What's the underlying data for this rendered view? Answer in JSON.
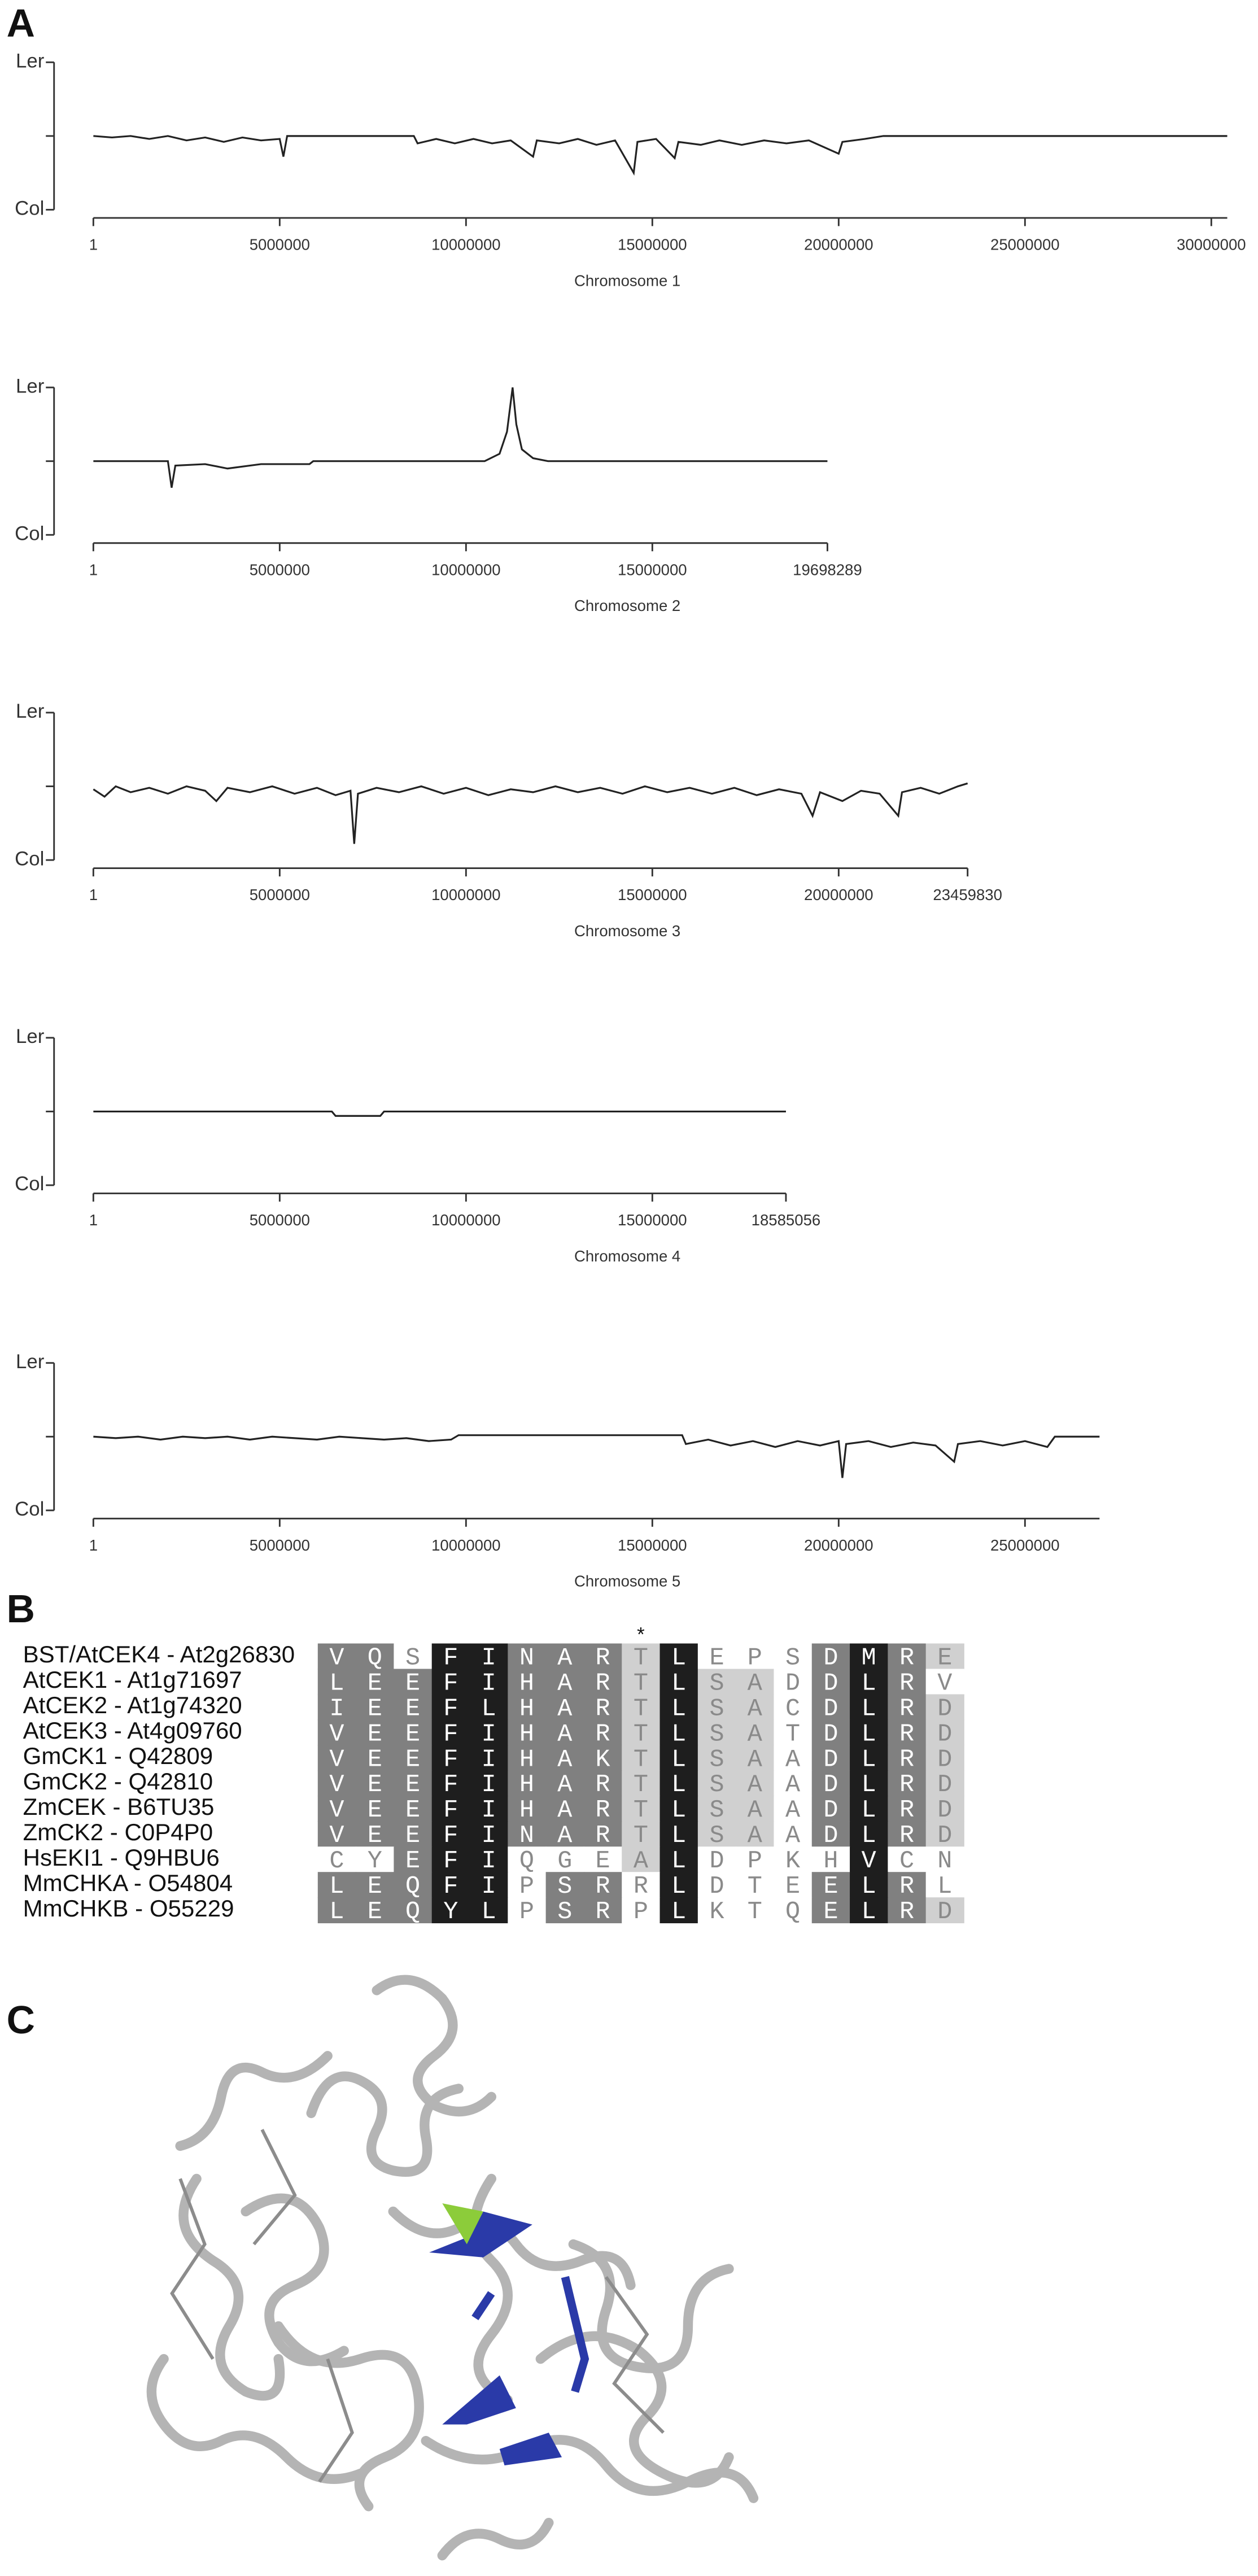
{
  "panel_labels": [
    "A",
    "B",
    "C"
  ],
  "chart_data": [
    {
      "type": "line",
      "xlabel": "Chromosome 1",
      "color": "#222222",
      "xlim": [
        1,
        30427671
      ],
      "xticks": [
        1,
        5000000,
        10000000,
        15000000,
        20000000,
        25000000,
        30000000
      ],
      "ylim": [
        0,
        1
      ],
      "yticks": [
        {
          "value": 1,
          "label": "Ler"
        },
        {
          "value": 0.5,
          "label": null
        },
        {
          "value": 0,
          "label": "Col"
        }
      ],
      "x": [
        1,
        500000,
        1000000,
        1500000,
        2000000,
        2500000,
        3000000,
        3500000,
        4000000,
        4500000,
        5000000,
        5100000,
        5200000,
        8600000,
        8700000,
        9200000,
        9700000,
        10200000,
        10700000,
        11200000,
        11800000,
        11900000,
        12500000,
        13000000,
        13500000,
        14000000,
        14500000,
        14600000,
        15100000,
        15600000,
        15700000,
        16300000,
        16800000,
        17400000,
        18000000,
        18600000,
        19200000,
        20000000,
        20100000,
        20700000,
        21200000,
        30427671
      ],
      "values": [
        0.5,
        0.49,
        0.5,
        0.48,
        0.5,
        0.47,
        0.49,
        0.46,
        0.49,
        0.47,
        0.48,
        0.36,
        0.5,
        0.5,
        0.45,
        0.48,
        0.45,
        0.48,
        0.45,
        0.47,
        0.36,
        0.47,
        0.45,
        0.48,
        0.44,
        0.47,
        0.25,
        0.46,
        0.48,
        0.35,
        0.46,
        0.44,
        0.47,
        0.44,
        0.47,
        0.45,
        0.47,
        0.38,
        0.46,
        0.48,
        0.5,
        0.5
      ]
    },
    {
      "type": "line",
      "xlabel": "Chromosome 2",
      "color": "#222222",
      "xlim": [
        1,
        19698289
      ],
      "xticks": [
        1,
        5000000,
        10000000,
        15000000,
        19698289
      ],
      "ylim": [
        0,
        1
      ],
      "yticks": [
        {
          "value": 1,
          "label": "Ler"
        },
        {
          "value": 0.5,
          "label": null
        },
        {
          "value": 0,
          "label": "Col"
        }
      ],
      "x": [
        1,
        2000000,
        2100000,
        2200000,
        3000000,
        3600000,
        4500000,
        5800000,
        5900000,
        10500000,
        10900000,
        11100000,
        11250000,
        11350000,
        11500000,
        11800000,
        12200000,
        19698289
      ],
      "values": [
        0.5,
        0.5,
        0.32,
        0.47,
        0.48,
        0.45,
        0.48,
        0.48,
        0.5,
        0.5,
        0.55,
        0.7,
        1.0,
        0.75,
        0.58,
        0.52,
        0.5,
        0.5
      ]
    },
    {
      "type": "line",
      "xlabel": "Chromosome 3",
      "color": "#222222",
      "xlim": [
        1,
        23459830
      ],
      "xticks": [
        1,
        5000000,
        10000000,
        15000000,
        20000000,
        23459830
      ],
      "ylim": [
        0,
        1
      ],
      "yticks": [
        {
          "value": 1,
          "label": "Ler"
        },
        {
          "value": 0.5,
          "label": null
        },
        {
          "value": 0,
          "label": "Col"
        }
      ],
      "x": [
        1,
        300000,
        600000,
        1000000,
        1500000,
        2000000,
        2500000,
        3000000,
        3300000,
        3600000,
        4200000,
        4800000,
        5400000,
        6000000,
        6500000,
        6900000,
        7000000,
        7100000,
        7600000,
        8200000,
        8800000,
        9400000,
        10000000,
        10600000,
        11200000,
        11800000,
        12400000,
        13000000,
        13600000,
        14200000,
        14800000,
        15400000,
        16000000,
        16600000,
        17200000,
        17800000,
        18400000,
        19000000,
        19300000,
        19500000,
        20100000,
        20600000,
        21100000,
        21600000,
        21700000,
        22200000,
        22700000,
        23200000,
        23459830
      ],
      "values": [
        0.48,
        0.43,
        0.5,
        0.46,
        0.49,
        0.45,
        0.5,
        0.47,
        0.4,
        0.49,
        0.46,
        0.5,
        0.45,
        0.49,
        0.44,
        0.47,
        0.11,
        0.45,
        0.49,
        0.46,
        0.5,
        0.45,
        0.49,
        0.44,
        0.48,
        0.46,
        0.5,
        0.46,
        0.49,
        0.45,
        0.5,
        0.46,
        0.49,
        0.45,
        0.49,
        0.44,
        0.48,
        0.45,
        0.3,
        0.46,
        0.4,
        0.47,
        0.45,
        0.3,
        0.46,
        0.49,
        0.45,
        0.5,
        0.52
      ]
    },
    {
      "type": "line",
      "xlabel": "Chromosome 4",
      "color": "#222222",
      "xlim": [
        1,
        18585056
      ],
      "xticks": [
        1,
        5000000,
        10000000,
        15000000,
        18585056
      ],
      "ylim": [
        0,
        1
      ],
      "yticks": [
        {
          "value": 1,
          "label": "Ler"
        },
        {
          "value": 0.5,
          "label": null
        },
        {
          "value": 0,
          "label": "Col"
        }
      ],
      "x": [
        1,
        6400000,
        6500000,
        7700000,
        7800000,
        18585056
      ],
      "values": [
        0.5,
        0.5,
        0.47,
        0.47,
        0.5,
        0.5
      ]
    },
    {
      "type": "line",
      "xlabel": "Chromosome 5",
      "color": "#222222",
      "xlim": [
        1,
        27000000
      ],
      "xticks": [
        1,
        5000000,
        10000000,
        15000000,
        20000000,
        25000000
      ],
      "ylim": [
        0,
        1
      ],
      "yticks": [
        {
          "value": 1,
          "label": "Ler"
        },
        {
          "value": 0.5,
          "label": null
        },
        {
          "value": 0,
          "label": "Col"
        }
      ],
      "x": [
        1,
        600000,
        1200000,
        1800000,
        2400000,
        3000000,
        3600000,
        4200000,
        4800000,
        5400000,
        6000000,
        6600000,
        7200000,
        7800000,
        8400000,
        9000000,
        9600000,
        9800000,
        15800000,
        15900000,
        16500000,
        17100000,
        17700000,
        18300000,
        18900000,
        19500000,
        20000000,
        20100000,
        20200000,
        20800000,
        21400000,
        22000000,
        22600000,
        23100000,
        23200000,
        23800000,
        24400000,
        25000000,
        25600000,
        25800000,
        27000000
      ],
      "values": [
        0.5,
        0.49,
        0.5,
        0.48,
        0.5,
        0.49,
        0.5,
        0.48,
        0.5,
        0.49,
        0.48,
        0.5,
        0.49,
        0.48,
        0.49,
        0.47,
        0.48,
        0.51,
        0.51,
        0.45,
        0.48,
        0.44,
        0.47,
        0.43,
        0.47,
        0.44,
        0.47,
        0.22,
        0.45,
        0.47,
        0.43,
        0.46,
        0.44,
        0.33,
        0.45,
        0.47,
        0.44,
        0.47,
        0.43,
        0.5,
        0.5
      ]
    }
  ],
  "alignment": {
    "palette": {
      "k": "#1e1e1e",
      "d": "#808080",
      "l": "#d0d0d0",
      "w": "#ffffff"
    },
    "markers": [
      null,
      null,
      null,
      null,
      null,
      null,
      null,
      null,
      "*",
      null,
      null,
      null,
      null,
      null,
      null,
      null,
      null
    ],
    "rows": [
      {
        "name": "BST/AtCEK4 - At2g26830",
        "residues": [
          "V",
          "Q",
          "S",
          "F",
          "I",
          "N",
          "A",
          "R",
          "T",
          "L",
          "E",
          "P",
          "S",
          "D",
          "M",
          "R",
          "E"
        ],
        "shades": "ddwkkdddlkwwwdkdl"
      },
      {
        "name": "AtCEK1 - At1g71697",
        "residues": [
          "L",
          "E",
          "E",
          "F",
          "I",
          "H",
          "A",
          "R",
          "T",
          "L",
          "S",
          "A",
          "D",
          "D",
          "L",
          "R",
          "V"
        ],
        "shades": "dddkkdddlkllwdkdw"
      },
      {
        "name": "AtCEK2 - At1g74320",
        "residues": [
          "I",
          "E",
          "E",
          "F",
          "L",
          "H",
          "A",
          "R",
          "T",
          "L",
          "S",
          "A",
          "C",
          "D",
          "L",
          "R",
          "D"
        ],
        "shades": "dddkkdddlkllwdkdl"
      },
      {
        "name": "AtCEK3 - At4g09760",
        "residues": [
          "V",
          "E",
          "E",
          "F",
          "I",
          "H",
          "A",
          "R",
          "T",
          "L",
          "S",
          "A",
          "T",
          "D",
          "L",
          "R",
          "D"
        ],
        "shades": "dddkkdddlkllwdkdl"
      },
      {
        "name": "GmCK1 - Q42809",
        "residues": [
          "V",
          "E",
          "E",
          "F",
          "I",
          "H",
          "A",
          "K",
          "T",
          "L",
          "S",
          "A",
          "A",
          "D",
          "L",
          "R",
          "D"
        ],
        "shades": "dddkkdddlkllwdkdl"
      },
      {
        "name": "GmCK2 - Q42810",
        "residues": [
          "V",
          "E",
          "E",
          "F",
          "I",
          "H",
          "A",
          "R",
          "T",
          "L",
          "S",
          "A",
          "A",
          "D",
          "L",
          "R",
          "D"
        ],
        "shades": "dddkkdddlkllwdkdl"
      },
      {
        "name": "ZmCEK - B6TU35",
        "residues": [
          "V",
          "E",
          "E",
          "F",
          "I",
          "H",
          "A",
          "R",
          "T",
          "L",
          "S",
          "A",
          "A",
          "D",
          "L",
          "R",
          "D"
        ],
        "shades": "dddkkdddlkllwdkdl"
      },
      {
        "name": "ZmCK2 - C0P4P0",
        "residues": [
          "V",
          "E",
          "E",
          "F",
          "I",
          "N",
          "A",
          "R",
          "T",
          "L",
          "S",
          "A",
          "A",
          "D",
          "L",
          "R",
          "D"
        ],
        "shades": "dddkkdddlkllwdkdl"
      },
      {
        "name": "HsEKI1 - Q9HBU6",
        "residues": [
          "C",
          "Y",
          "E",
          "F",
          "I",
          "Q",
          "G",
          "E",
          "A",
          "L",
          "D",
          "P",
          "K",
          "H",
          "V",
          "C",
          "N"
        ],
        "shades": "wwdkkwwwlkwwwwkww"
      },
      {
        "name": "MmCHKA - O54804",
        "residues": [
          "L",
          "E",
          "Q",
          "F",
          "I",
          "P",
          "S",
          "R",
          "R",
          "L",
          "D",
          "T",
          "E",
          "E",
          "L",
          "R",
          "L"
        ],
        "shades": "dddkkwddwkwwwdkdw"
      },
      {
        "name": "MmCHKB - O55229",
        "residues": [
          "L",
          "E",
          "Q",
          "Y",
          "L",
          "P",
          "S",
          "R",
          "P",
          "L",
          "K",
          "T",
          "Q",
          "E",
          "L",
          "R",
          "D"
        ],
        "shades": "dddkkwddwkwwwdkdl"
      }
    ]
  }
}
